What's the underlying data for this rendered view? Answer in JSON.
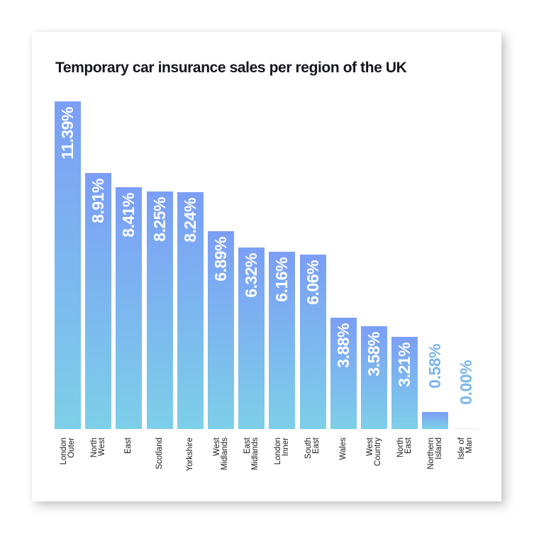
{
  "chart_data": {
    "type": "bar",
    "title": "Temporary car insurance sales per region of the UK",
    "xlabel": "",
    "ylabel": "",
    "ylim": [
      0,
      11.39
    ],
    "grid": false,
    "legend": null,
    "value_format": "percent",
    "categories": [
      "London Outer",
      "North West",
      "East",
      "Scotland",
      "Yorkshire",
      "West Midlands",
      "East Midlands",
      "London Inner",
      "South East",
      "Wales",
      "West Country",
      "North East",
      "Northern Island",
      "Isle of Man"
    ],
    "values": [
      11.39,
      8.91,
      8.41,
      8.25,
      8.24,
      6.89,
      6.32,
      6.16,
      6.06,
      3.88,
      3.58,
      3.21,
      0.58,
      0.0
    ],
    "value_labels": [
      "11.39%",
      "8.91%",
      "8.41%",
      "8.25%",
      "8.24%",
      "6.89%",
      "6.32%",
      "6.16%",
      "6.06%",
      "3.88%",
      "3.58%",
      "3.21%",
      "0.58%",
      "0.00%"
    ],
    "label_lines": [
      [
        "London",
        "Outer"
      ],
      [
        "North",
        "West"
      ],
      [
        "East"
      ],
      [
        "Scotland"
      ],
      [
        "Yorkshire"
      ],
      [
        "West",
        "Midlands"
      ],
      [
        "East",
        "Midlands"
      ],
      [
        "London",
        "Inner"
      ],
      [
        "South",
        "East"
      ],
      [
        "Wales"
      ],
      [
        "West",
        "Country"
      ],
      [
        "North",
        "East"
      ],
      [
        "Northern",
        "Island"
      ],
      [
        "Isle of",
        "Man"
      ]
    ]
  },
  "colors": {
    "bar_top": "#7b9ef6",
    "bar_bottom": "#7dcfe8",
    "outside_label": "#7ab6ec",
    "title": "#15151f",
    "label": "#1a1a1a"
  }
}
